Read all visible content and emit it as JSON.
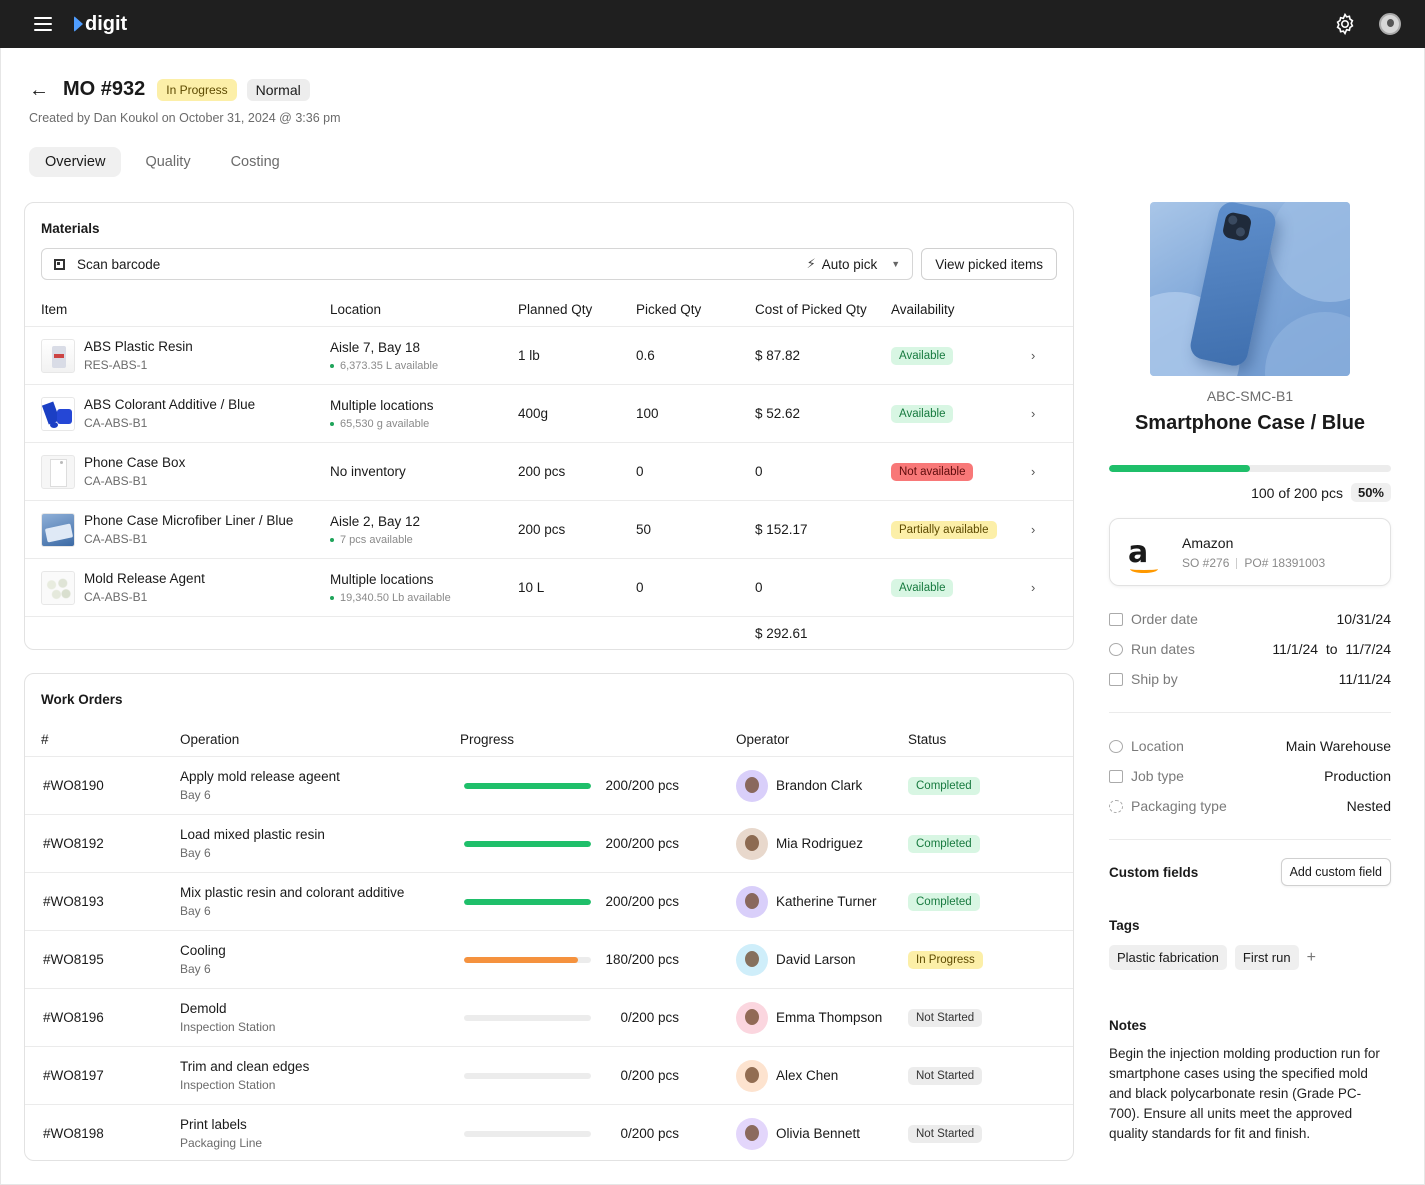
{
  "app": {
    "name": "digit"
  },
  "header": {
    "title": "MO #932",
    "status": "In Progress",
    "priority": "Normal",
    "created": "Created by Dan Koukol on October 31, 2024 @ 3:36 pm"
  },
  "tabs": [
    {
      "label": "Overview"
    },
    {
      "label": "Quality"
    },
    {
      "label": "Costing"
    }
  ],
  "materials": {
    "title": "Materials",
    "scan_placeholder": "Scan barcode",
    "auto_pick": "Auto pick",
    "view_picked": "View picked items",
    "columns": [
      "Item",
      "Location",
      "Planned Qty",
      "Picked Qty",
      "Cost of Picked Qty",
      "Availability"
    ],
    "rows": [
      {
        "name": "ABS Plastic Resin",
        "sku": "RES-ABS-1",
        "location": "Aisle 7, Bay 18",
        "stock": "6,373.35 L available",
        "planned": "1 lb",
        "picked": "0.6",
        "cost": "$ 87.82",
        "availability": "Available",
        "status": "green"
      },
      {
        "name": "ABS Colorant Additive / Blue",
        "sku": "CA-ABS-B1",
        "location": "Multiple locations",
        "stock": "65,530 g available",
        "planned": "400g",
        "picked": "100",
        "cost": "$ 52.62",
        "availability": "Available",
        "status": "green"
      },
      {
        "name": "Phone Case Box",
        "sku": "CA-ABS-B1",
        "location": "No inventory",
        "stock": "",
        "planned": "200 pcs",
        "picked": "0",
        "cost": "0",
        "availability": "Not available",
        "status": "red"
      },
      {
        "name": "Phone Case Microfiber Liner / Blue",
        "sku": "CA-ABS-B1",
        "location": "Aisle 2, Bay 12",
        "stock": "7 pcs available",
        "planned": "200 pcs",
        "picked": "50",
        "cost": "$ 152.17",
        "availability": "Partially available",
        "status": "yellow"
      },
      {
        "name": "Mold Release Agent",
        "sku": "CA-ABS-B1",
        "location": "Multiple locations",
        "stock": "19,340.50 Lb available",
        "planned": "10 L",
        "picked": "0",
        "cost": "0",
        "availability": "Available",
        "status": "green"
      }
    ],
    "total": "$ 292.61"
  },
  "work_orders": {
    "title": "Work Orders",
    "columns": [
      "#",
      "Operation",
      "Progress",
      "Operator",
      "Status"
    ],
    "rows": [
      {
        "id": "#WO8190",
        "operation": "Apply mold release ageent",
        "place": "Bay 6",
        "progress": 1.0,
        "progress_text": "200/200 pcs",
        "operator": "Brandon Clark",
        "status": "Completed",
        "kind": "green",
        "avatar_bg": "#d9cffa"
      },
      {
        "id": "#WO8192",
        "operation": "Load mixed plastic resin",
        "place": "Bay 6",
        "progress": 1.0,
        "progress_text": "200/200 pcs",
        "operator": "Mia Rodriguez",
        "status": "Completed",
        "kind": "green",
        "avatar_bg": "#e8d8cc"
      },
      {
        "id": "#WO8193",
        "operation": "Mix plastic resin and colorant additive",
        "place": "Bay 6",
        "progress": 1.0,
        "progress_text": "200/200 pcs",
        "operator": "Katherine Turner",
        "status": "Completed",
        "kind": "green",
        "avatar_bg": "#d9cffa"
      },
      {
        "id": "#WO8195",
        "operation": "Cooling",
        "place": "Bay 6",
        "progress": 0.9,
        "progress_text": "180/200 pcs",
        "operator": "David Larson",
        "status": "In Progress",
        "kind": "yellow",
        "avatar_bg": "#cfeefa"
      },
      {
        "id": "#WO8196",
        "operation": "Demold",
        "place": "Inspection Station",
        "progress": 0,
        "progress_text": "0/200 pcs",
        "operator": "Emma Thompson",
        "status": "Not Started",
        "kind": "gray",
        "avatar_bg": "#fbd6df"
      },
      {
        "id": "#WO8197",
        "operation": "Trim and clean edges",
        "place": "Inspection Station",
        "progress": 0,
        "progress_text": "0/200 pcs",
        "operator": "Alex Chen",
        "status": "Not Started",
        "kind": "gray",
        "avatar_bg": "#fde3cf"
      },
      {
        "id": "#WO8198",
        "operation": "Print labels",
        "place": "Packaging Line",
        "progress": 0,
        "progress_text": "0/200 pcs",
        "operator": "Olivia Bennett",
        "status": "Not Started",
        "kind": "gray",
        "avatar_bg": "#e3d6fb"
      }
    ]
  },
  "product": {
    "sku": "ABC-SMC-B1",
    "name": "Smartphone Case / Blue",
    "progress": 0.5,
    "count_text": "100 of 200 pcs",
    "percent": "50%"
  },
  "customer": {
    "name": "Amazon",
    "so": "SO #276",
    "po": "PO# 18391003"
  },
  "dates": [
    {
      "label": "Order date",
      "value": "10/31/24",
      "icon": "calendar-icon"
    },
    {
      "label": "Run dates",
      "value": "11/1/24  to  11/7/24",
      "icon": "fast-forward-icon"
    },
    {
      "label": "Ship by",
      "value": "11/11/24",
      "icon": "truck-icon"
    }
  ],
  "details": [
    {
      "label": "Location",
      "value": "Main Warehouse",
      "icon": "map-pin-icon"
    },
    {
      "label": "Job type",
      "value": "Production",
      "icon": "clipboard-icon"
    },
    {
      "label": "Packaging type",
      "value": "Nested",
      "icon": "package-icon"
    }
  ],
  "custom_fields": {
    "title": "Custom fields",
    "button": "Add custom field"
  },
  "tags": {
    "title": "Tags",
    "items": [
      "Plastic fabrication",
      "First run"
    ]
  },
  "notes": {
    "title": "Notes",
    "text": "Begin the injection molding production run for smartphone cases using the specified mold and black polycarbonate resin (Grade PC-700). Ensure all units meet the approved quality standards for fit and finish."
  },
  "colors": {
    "green": "#1fbf6a",
    "orange": "#f5923e",
    "accent": "#4f9dff"
  }
}
